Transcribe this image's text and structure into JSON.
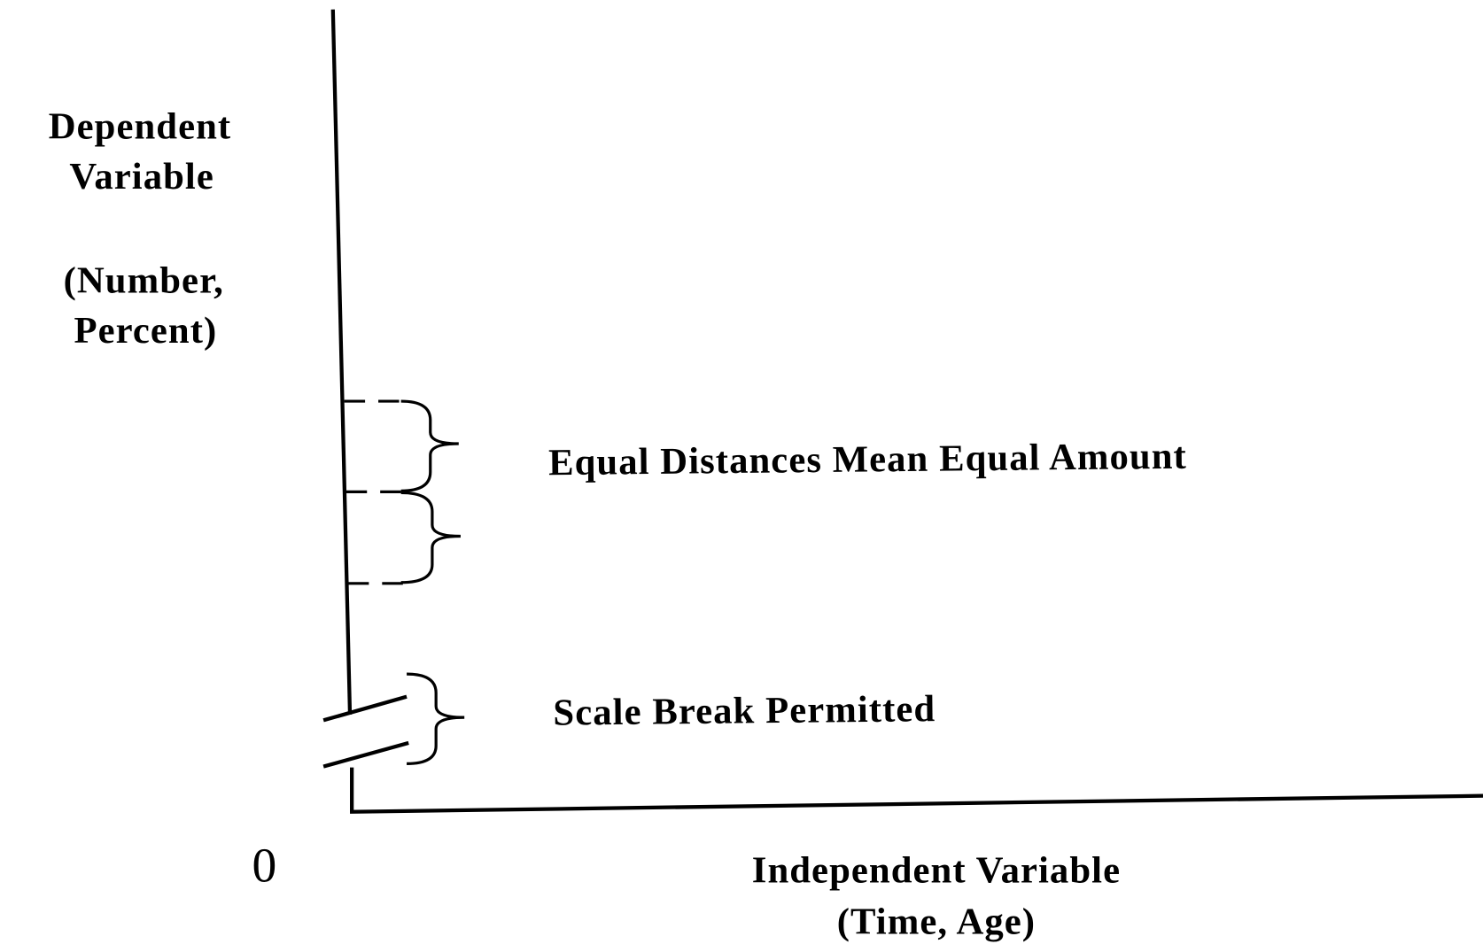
{
  "y_axis": {
    "label": [
      "Dependent",
      "Variable"
    ],
    "units": [
      "(Number,",
      "Percent)"
    ]
  },
  "origin": "0",
  "x_axis": {
    "label": "Independent Variable",
    "units": "(Time, Age)"
  },
  "annotations": [
    "Equal Distances Mean Equal Amount",
    "Scale Break Permitted"
  ]
}
